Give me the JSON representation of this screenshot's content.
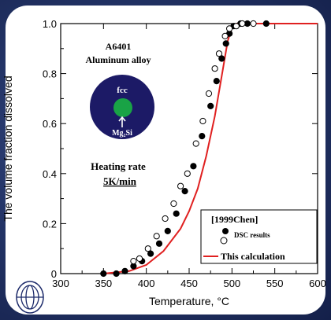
{
  "chart_data": {
    "type": "scatter",
    "title": "",
    "xlabel": "Temperature, °C",
    "ylabel": "The volume fraction dissolved",
    "xlim": [
      300,
      600
    ],
    "ylim": [
      0,
      1.0
    ],
    "x_ticks": [
      "300",
      "350",
      "400",
      "450",
      "500",
      "550",
      "600"
    ],
    "y_ticks": [
      "0",
      "0.2",
      "0.4",
      "0.6",
      "0.8",
      "1.0"
    ],
    "grid": false,
    "annotations": {
      "material_line1": "A6401",
      "material_line2": "Aluminum alloy",
      "matrix_label": "fcc",
      "precipitate_label": "Mg₂Si",
      "heating_rate_label": "Heating rate",
      "heating_rate_value": "5K/min"
    },
    "legend": {
      "position": "bottom-right",
      "header": "[1999Chen]",
      "dsc_label": "DSC results",
      "calc_label": "This calculation"
    },
    "series": [
      {
        "name": "DSC results (filled)",
        "marker": "filled-circle",
        "points": [
          [
            350,
            0.0
          ],
          [
            365,
            0.0
          ],
          [
            375,
            0.01
          ],
          [
            385,
            0.03
          ],
          [
            395,
            0.05
          ],
          [
            405,
            0.08
          ],
          [
            415,
            0.12
          ],
          [
            425,
            0.17
          ],
          [
            435,
            0.24
          ],
          [
            445,
            0.33
          ],
          [
            455,
            0.43
          ],
          [
            465,
            0.55
          ],
          [
            475,
            0.67
          ],
          [
            482,
            0.77
          ],
          [
            488,
            0.86
          ],
          [
            493,
            0.92
          ],
          [
            497,
            0.96
          ],
          [
            502,
            0.99
          ],
          [
            510,
            1.0
          ],
          [
            518,
            1.0
          ],
          [
            540,
            1.0
          ]
        ]
      },
      {
        "name": "DSC results (open)",
        "marker": "open-circle",
        "points": [
          [
            385,
            0.05
          ],
          [
            392,
            0.06
          ],
          [
            402,
            0.1
          ],
          [
            412,
            0.15
          ],
          [
            422,
            0.22
          ],
          [
            432,
            0.28
          ],
          [
            440,
            0.35
          ],
          [
            448,
            0.4
          ],
          [
            458,
            0.52
          ],
          [
            466,
            0.61
          ],
          [
            473,
            0.72
          ],
          [
            480,
            0.82
          ],
          [
            485,
            0.88
          ],
          [
            492,
            0.95
          ],
          [
            497,
            0.98
          ],
          [
            505,
            0.99
          ],
          [
            512,
            1.0
          ],
          [
            525,
            1.0
          ]
        ]
      },
      {
        "name": "This calculation",
        "color": "#e02020",
        "points": [
          [
            350,
            0.0
          ],
          [
            380,
            0.01
          ],
          [
            400,
            0.035
          ],
          [
            420,
            0.09
          ],
          [
            440,
            0.18
          ],
          [
            450,
            0.25
          ],
          [
            460,
            0.34
          ],
          [
            470,
            0.47
          ],
          [
            480,
            0.63
          ],
          [
            490,
            0.83
          ],
          [
            495,
            0.93
          ],
          [
            500,
            0.985
          ],
          [
            505,
            1.0
          ],
          [
            600,
            1.0
          ]
        ]
      }
    ]
  },
  "colors": {
    "calc_line": "#e02020",
    "inset_matrix": "#1c1a66",
    "inset_particle": "#19a346"
  }
}
